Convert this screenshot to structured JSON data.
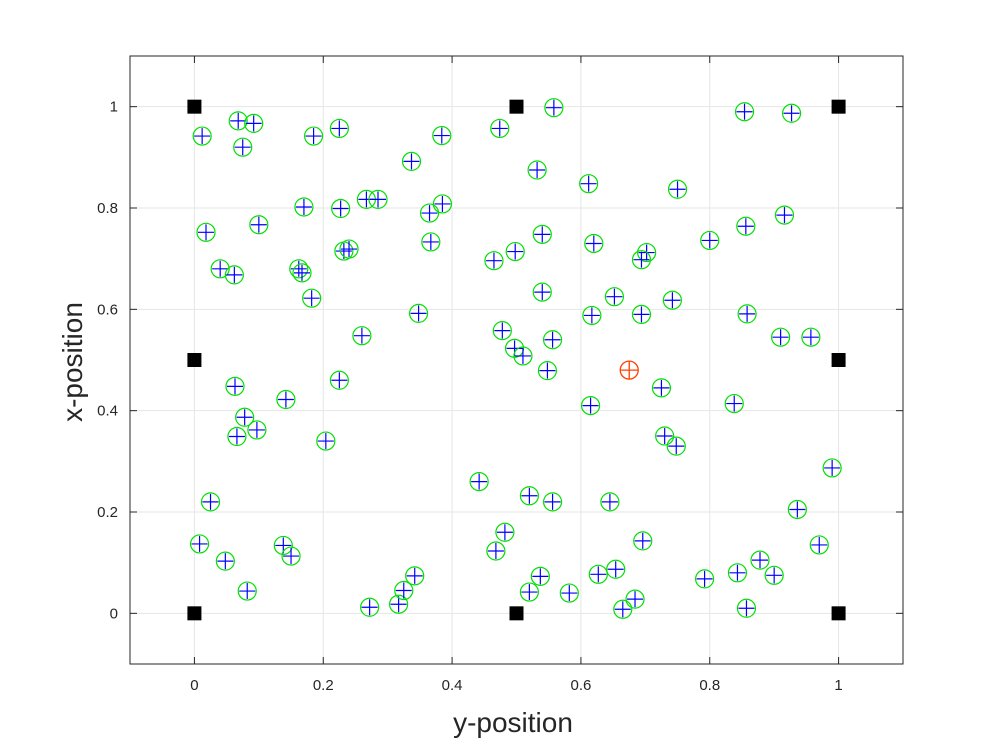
{
  "chart_data": {
    "type": "scatter",
    "xlabel": "y-position",
    "ylabel": "x-position",
    "xlim": [
      -0.1,
      1.1
    ],
    "ylim": [
      -0.1,
      1.1
    ],
    "xticks": [
      0,
      0.2,
      0.4,
      0.6,
      0.8,
      1
    ],
    "yticks": [
      0,
      0.2,
      0.4,
      0.6,
      0.8,
      1
    ],
    "xtick_labels": [
      "0",
      "0.2",
      "0.4",
      "0.6",
      "0.8",
      "1"
    ],
    "ytick_labels": [
      "0",
      "0.2",
      "0.4",
      "0.6",
      "0.8",
      "1"
    ],
    "grid": true,
    "colors": {
      "anchor": "#000000",
      "circle": "#00e000",
      "cross": "#0000ff",
      "highlight": "#ff4000",
      "grid": "#e6e6e6",
      "axis": "#262626"
    },
    "anchors": [
      [
        0,
        0
      ],
      [
        0.5,
        0
      ],
      [
        1,
        0
      ],
      [
        0,
        0.5
      ],
      [
        1,
        0.5
      ],
      [
        0,
        1
      ],
      [
        0.5,
        1
      ],
      [
        1,
        1
      ]
    ],
    "highlight": [
      [
        0.675,
        0.48
      ]
    ],
    "points": [
      [
        0.012,
        0.942
      ],
      [
        0.068,
        0.972
      ],
      [
        0.092,
        0.967
      ],
      [
        0.075,
        0.92
      ],
      [
        0.185,
        0.942
      ],
      [
        0.225,
        0.957
      ],
      [
        0.337,
        0.892
      ],
      [
        0.384,
        0.943
      ],
      [
        0.474,
        0.957
      ],
      [
        0.558,
        0.998
      ],
      [
        0.854,
        0.99
      ],
      [
        0.927,
        0.987
      ],
      [
        0.532,
        0.875
      ],
      [
        0.612,
        0.848
      ],
      [
        0.75,
        0.837
      ],
      [
        0.916,
        0.786
      ],
      [
        0.856,
        0.764
      ],
      [
        0.8,
        0.736
      ],
      [
        0.018,
        0.752
      ],
      [
        0.1,
        0.767
      ],
      [
        0.17,
        0.802
      ],
      [
        0.227,
        0.799
      ],
      [
        0.267,
        0.817
      ],
      [
        0.285,
        0.817
      ],
      [
        0.365,
        0.79
      ],
      [
        0.385,
        0.808
      ],
      [
        0.232,
        0.715
      ],
      [
        0.24,
        0.719
      ],
      [
        0.367,
        0.733
      ],
      [
        0.465,
        0.696
      ],
      [
        0.498,
        0.714
      ],
      [
        0.54,
        0.748
      ],
      [
        0.62,
        0.73
      ],
      [
        0.702,
        0.712
      ],
      [
        0.694,
        0.698
      ],
      [
        0.04,
        0.68
      ],
      [
        0.062,
        0.668
      ],
      [
        0.162,
        0.68
      ],
      [
        0.167,
        0.672
      ],
      [
        0.182,
        0.622
      ],
      [
        0.26,
        0.548
      ],
      [
        0.348,
        0.592
      ],
      [
        0.54,
        0.634
      ],
      [
        0.652,
        0.625
      ],
      [
        0.742,
        0.618
      ],
      [
        0.617,
        0.588
      ],
      [
        0.694,
        0.59
      ],
      [
        0.858,
        0.591
      ],
      [
        0.478,
        0.558
      ],
      [
        0.556,
        0.54
      ],
      [
        0.497,
        0.523
      ],
      [
        0.51,
        0.508
      ],
      [
        0.91,
        0.545
      ],
      [
        0.957,
        0.545
      ],
      [
        0.063,
        0.448
      ],
      [
        0.225,
        0.46
      ],
      [
        0.548,
        0.479
      ],
      [
        0.725,
        0.445
      ],
      [
        0.142,
        0.422
      ],
      [
        0.078,
        0.387
      ],
      [
        0.615,
        0.41
      ],
      [
        0.838,
        0.414
      ],
      [
        0.066,
        0.349
      ],
      [
        0.097,
        0.362
      ],
      [
        0.204,
        0.34
      ],
      [
        0.73,
        0.35
      ],
      [
        0.748,
        0.33
      ],
      [
        0.99,
        0.287
      ],
      [
        0.442,
        0.26
      ],
      [
        0.025,
        0.22
      ],
      [
        0.52,
        0.232
      ],
      [
        0.556,
        0.22
      ],
      [
        0.645,
        0.22
      ],
      [
        0.936,
        0.205
      ],
      [
        0.008,
        0.137
      ],
      [
        0.138,
        0.134
      ],
      [
        0.15,
        0.113
      ],
      [
        0.482,
        0.16
      ],
      [
        0.468,
        0.123
      ],
      [
        0.696,
        0.143
      ],
      [
        0.97,
        0.135
      ],
      [
        0.048,
        0.103
      ],
      [
        0.082,
        0.044
      ],
      [
        0.272,
        0.012
      ],
      [
        0.317,
        0.018
      ],
      [
        0.325,
        0.045
      ],
      [
        0.342,
        0.074
      ],
      [
        0.52,
        0.042
      ],
      [
        0.537,
        0.073
      ],
      [
        0.582,
        0.04
      ],
      [
        0.627,
        0.077
      ],
      [
        0.654,
        0.087
      ],
      [
        0.665,
        0.008
      ],
      [
        0.684,
        0.028
      ],
      [
        0.792,
        0.068
      ],
      [
        0.843,
        0.08
      ],
      [
        0.878,
        0.105
      ],
      [
        0.9,
        0.075
      ],
      [
        0.857,
        0.01
      ]
    ]
  }
}
